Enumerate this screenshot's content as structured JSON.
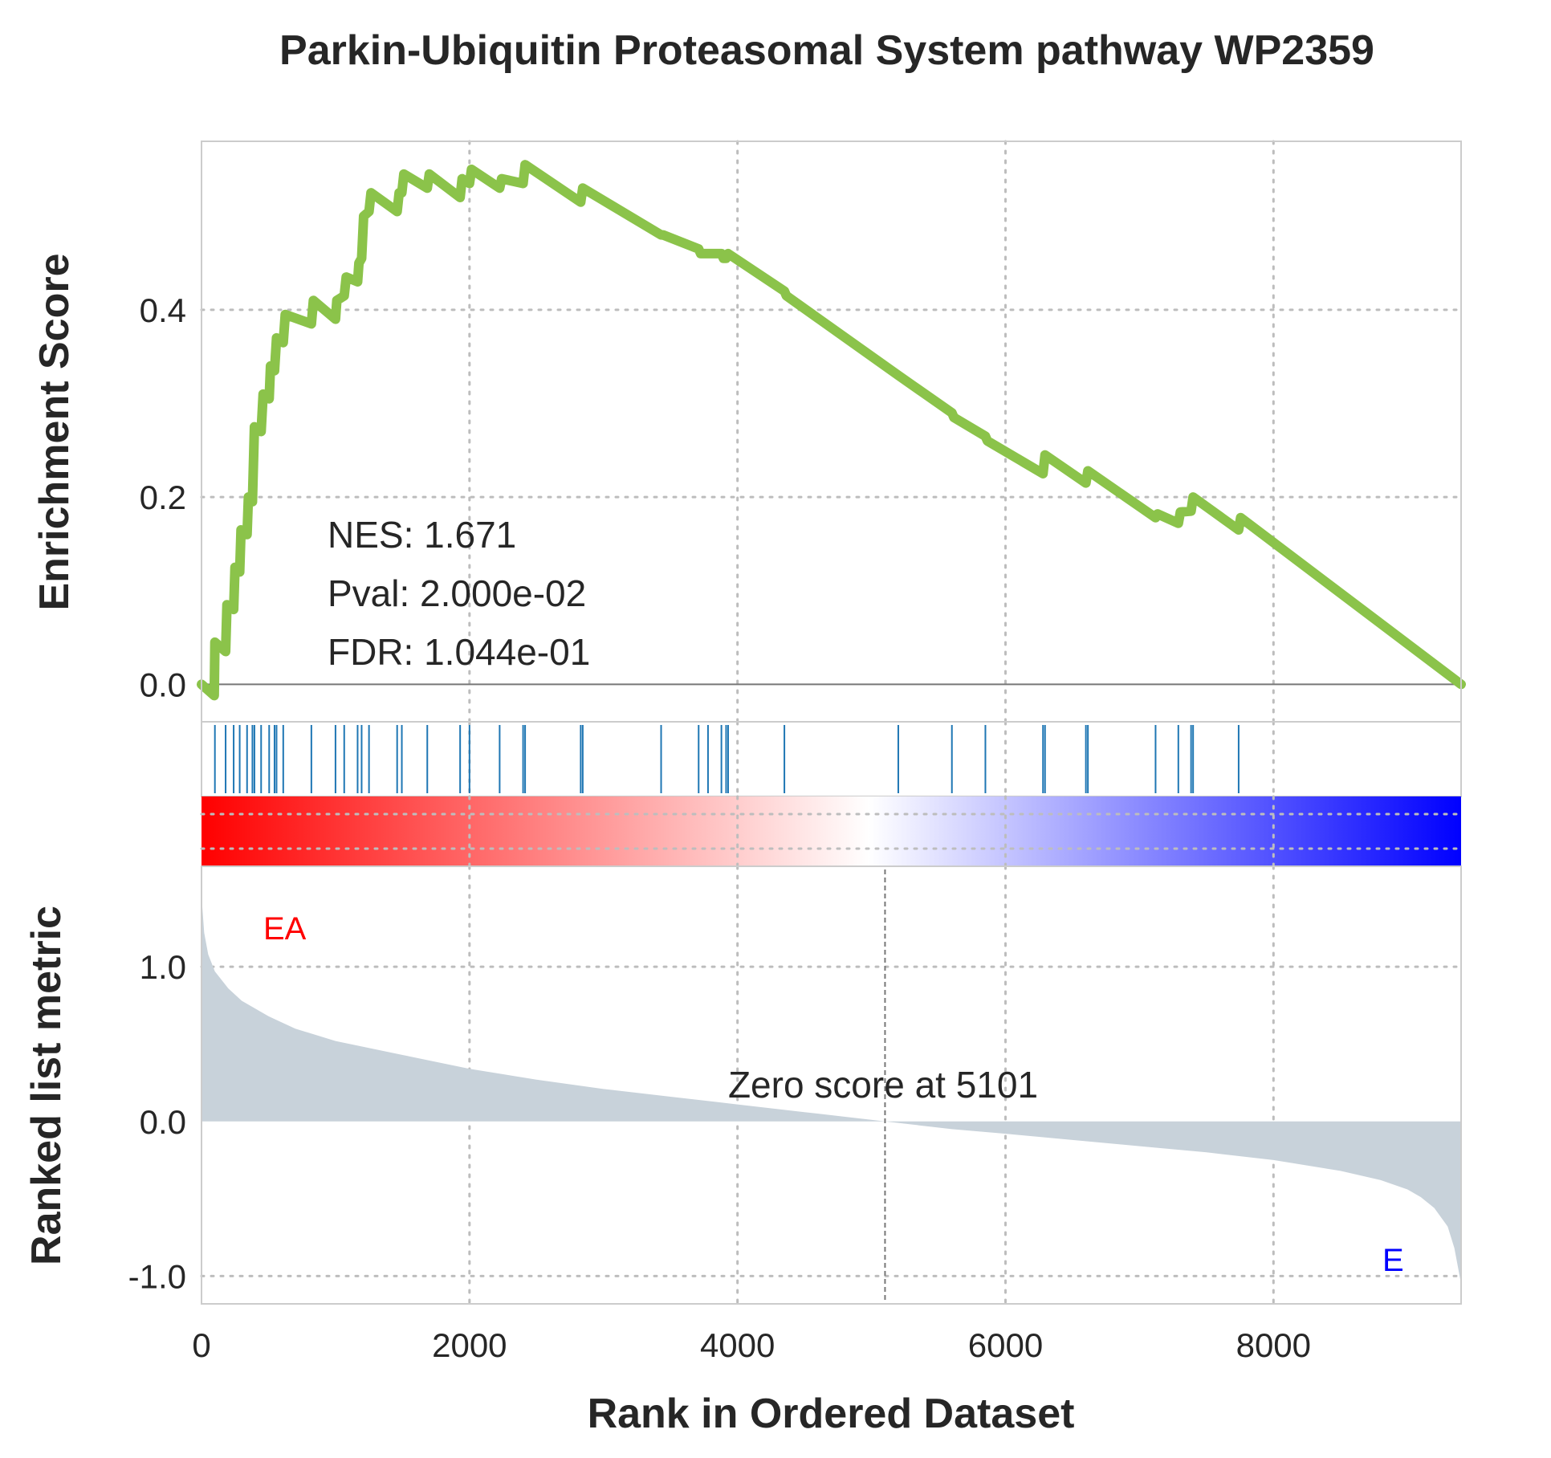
{
  "chart_data": {
    "type": "line",
    "title": "Parkin-Ubiquitin Proteasomal System pathway WP2359",
    "xlabel": "Rank in Ordered Dataset",
    "x_range": [
      0,
      9400
    ],
    "x_ticks": [
      0,
      2000,
      4000,
      6000,
      8000
    ],
    "x_tick_labels": [
      "0",
      "2000",
      "4000",
      "6000",
      "8000"
    ],
    "grid": true,
    "enrichment_panel": {
      "ylabel": "Enrichment Score",
      "ylim": [
        -0.04,
        0.58
      ],
      "y_ticks": [
        0.0,
        0.2,
        0.4
      ],
      "y_tick_labels": [
        "0.0",
        "0.2",
        "0.4"
      ],
      "line_color": "#8bc34a",
      "stats": {
        "nes": "NES: 1.671",
        "pval": "Pval: 2.000e-02",
        "fdr": "FDR: 1.044e-01"
      },
      "running_es": {
        "x": [
          0,
          95,
          100,
          180,
          190,
          240,
          250,
          285,
          295,
          340,
          350,
          380,
          395,
          445,
          460,
          505,
          515,
          545,
          560,
          610,
          625,
          820,
          835,
          1000,
          1010,
          1065,
          1080,
          1165,
          1175,
          1195,
          1210,
          1250,
          1265,
          1460,
          1475,
          1495,
          1510,
          1685,
          1700,
          1930,
          1945,
          2000,
          2015,
          2225,
          2240,
          2400,
          2415,
          2830,
          2845,
          3430,
          3445,
          3710,
          3725,
          3880,
          3895,
          3915,
          3930,
          4350,
          4365,
          5200,
          5600,
          5615,
          5850,
          5865,
          6280,
          6295,
          6600,
          6615,
          7120,
          7135,
          7290,
          7305,
          7385,
          7400,
          7740,
          7755,
          9400
        ],
        "y": [
          0.0,
          -0.012,
          0.045,
          0.035,
          0.085,
          0.08,
          0.125,
          0.12,
          0.165,
          0.16,
          0.2,
          0.195,
          0.275,
          0.27,
          0.31,
          0.305,
          0.34,
          0.335,
          0.37,
          0.365,
          0.395,
          0.385,
          0.41,
          0.39,
          0.41,
          0.415,
          0.435,
          0.43,
          0.45,
          0.455,
          0.5,
          0.505,
          0.525,
          0.505,
          0.525,
          0.525,
          0.545,
          0.53,
          0.545,
          0.52,
          0.54,
          0.535,
          0.55,
          0.53,
          0.54,
          0.535,
          0.555,
          0.515,
          0.53,
          0.48,
          0.48,
          0.465,
          0.46,
          0.46,
          0.455,
          0.455,
          0.46,
          0.42,
          0.415,
          0.33,
          0.29,
          0.285,
          0.265,
          0.26,
          0.225,
          0.245,
          0.215,
          0.228,
          0.178,
          0.182,
          0.172,
          0.184,
          0.185,
          0.2,
          0.165,
          0.178,
          0.0
        ]
      }
    },
    "hits_panel": {
      "color": "#1f77b4",
      "hits": [
        100,
        180,
        240,
        285,
        340,
        380,
        395,
        445,
        505,
        545,
        560,
        610,
        820,
        1000,
        1065,
        1165,
        1195,
        1250,
        1460,
        1495,
        1685,
        1930,
        2000,
        2225,
        2400,
        2415,
        2830,
        2845,
        3430,
        3710,
        3780,
        3880,
        3915,
        3930,
        4350,
        5200,
        5600,
        5850,
        6280,
        6295,
        6600,
        6615,
        7120,
        7290,
        7385,
        7400,
        7740
      ]
    },
    "colorbar": {
      "colors": [
        "#ff0000",
        "#ffffff",
        "#0000ff"
      ],
      "white_fraction": 0.53
    },
    "metric_panel": {
      "ylabel": "Ranked list metric",
      "ylim": [
        -1.18,
        1.65
      ],
      "y_ticks": [
        -1.0,
        0.0,
        1.0
      ],
      "y_tick_labels": [
        "-1.0",
        "0.0",
        "1.0"
      ],
      "fill_color": "#c8d2da",
      "zero_cross_label": "Zero score at 5101",
      "zero_cross_x": 5101,
      "positive_label": "EA",
      "positive_color": "#ff0000",
      "negative_label": "E",
      "negative_color": "#0000ff",
      "curve": {
        "x": [
          0,
          5,
          20,
          50,
          100,
          200,
          300,
          500,
          700,
          1000,
          1500,
          2000,
          2500,
          3000,
          3500,
          4000,
          4500,
          5101,
          5600,
          6000,
          6500,
          7000,
          7500,
          8000,
          8500,
          8800,
          9000,
          9100,
          9200,
          9300,
          9350,
          9400
        ],
        "y": [
          1.62,
          1.4,
          1.22,
          1.08,
          0.97,
          0.86,
          0.78,
          0.68,
          0.6,
          0.52,
          0.43,
          0.34,
          0.27,
          0.21,
          0.16,
          0.11,
          0.06,
          0.0,
          -0.05,
          -0.08,
          -0.12,
          -0.16,
          -0.2,
          -0.25,
          -0.32,
          -0.38,
          -0.44,
          -0.49,
          -0.56,
          -0.68,
          -0.82,
          -1.05
        ]
      }
    }
  }
}
